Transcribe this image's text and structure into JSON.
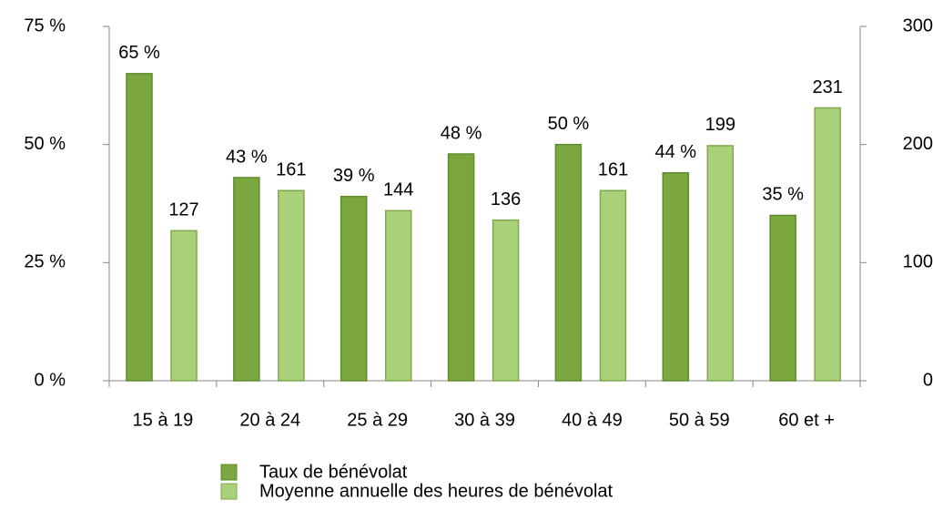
{
  "chart_data": {
    "type": "bar",
    "categories": [
      "15 à 19",
      "20 à 24",
      "25 à 29",
      "30 à 39",
      "40 à 49",
      "50 à 59",
      "60 et +"
    ],
    "series": [
      {
        "name": "Taux de bénévolat",
        "color": "#7aa83f",
        "axis": "y",
        "values": [
          65,
          43,
          39,
          48,
          50,
          44,
          35
        ],
        "value_labels": [
          "65 %",
          "43 %",
          "39 %",
          "48 %",
          "50 %",
          "44 %",
          "35 %"
        ]
      },
      {
        "name": "Moyenne annuelle des heures de bénévolat",
        "color": "#a9d17a",
        "axis": "y2",
        "values": [
          127,
          161,
          144,
          136,
          161,
          199,
          231
        ]
      }
    ],
    "ylim": [
      0,
      75
    ],
    "yticks": [
      {
        "value": 0,
        "label": "0 %"
      },
      {
        "value": 25,
        "label": "25 %"
      },
      {
        "value": 50,
        "label": "50 %"
      },
      {
        "value": 75,
        "label": "75 %"
      }
    ],
    "y2lim": [
      0,
      300
    ],
    "y2ticks": [
      0,
      100,
      200,
      300
    ],
    "grid": false,
    "legend": "bottom"
  }
}
